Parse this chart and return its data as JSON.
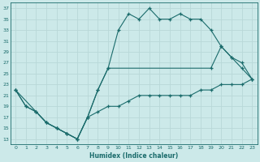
{
  "xlabel": "Humidex (Indice chaleur)",
  "bg_color": "#cce9e9",
  "grid_color": "#aacccc",
  "line_color": "#1a6b6b",
  "xlim": [
    -0.5,
    23.5
  ],
  "ylim": [
    12,
    38
  ],
  "yticks": [
    13,
    15,
    17,
    19,
    21,
    23,
    25,
    27,
    29,
    31,
    33,
    35,
    37
  ],
  "xticks": [
    0,
    1,
    2,
    3,
    4,
    5,
    6,
    7,
    8,
    9,
    10,
    11,
    12,
    13,
    14,
    15,
    16,
    17,
    18,
    19,
    20,
    21,
    22,
    23
  ],
  "curve1_x": [
    0,
    1,
    2,
    3,
    4,
    5,
    6,
    7,
    8,
    9,
    10,
    11,
    12,
    13,
    14,
    15,
    16,
    17,
    18,
    19,
    20,
    21,
    22,
    23
  ],
  "curve1_y": [
    22,
    19,
    18,
    16,
    15,
    14,
    13,
    17,
    22,
    26,
    33,
    36,
    35,
    37,
    35,
    35,
    36,
    35,
    35,
    33,
    30,
    28,
    26,
    24
  ],
  "curve2_x": [
    0,
    1,
    2,
    3,
    4,
    5,
    6,
    7,
    8,
    9,
    10,
    11,
    12,
    13,
    14,
    15,
    16,
    17,
    18,
    19,
    20,
    21,
    22,
    23
  ],
  "curve2_y": [
    22,
    19,
    18,
    16,
    15,
    14,
    13,
    17,
    18,
    19,
    19,
    20,
    21,
    21,
    21,
    21,
    21,
    21,
    22,
    22,
    23,
    23,
    23,
    24
  ],
  "curve3_x": [
    0,
    2,
    3,
    4,
    5,
    6,
    7,
    8,
    9,
    19,
    20,
    21,
    22,
    23
  ],
  "curve3_y": [
    22,
    18,
    16,
    15,
    14,
    13,
    17,
    22,
    26,
    26,
    30,
    28,
    27,
    24
  ]
}
